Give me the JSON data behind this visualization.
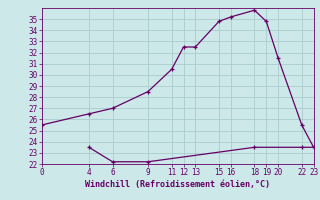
{
  "xlabel": "Windchill (Refroidissement éolien,°C)",
  "background_color": "#cce8e8",
  "grid_color": "#aacccc",
  "line_color": "#660066",
  "line1_x": [
    0,
    4,
    6,
    9,
    11,
    12,
    13,
    15,
    16,
    18,
    19,
    20,
    22,
    23
  ],
  "line1_y": [
    25.5,
    26.5,
    27.0,
    28.5,
    30.5,
    32.5,
    32.5,
    34.8,
    35.2,
    35.8,
    34.8,
    31.5,
    25.5,
    23.5
  ],
  "line2_x": [
    4,
    6,
    9,
    18,
    22,
    23
  ],
  "line2_y": [
    23.5,
    22.2,
    22.2,
    23.5,
    23.5,
    23.5
  ],
  "ylim": [
    22,
    36
  ],
  "xlim": [
    0,
    23
  ],
  "yticks": [
    22,
    23,
    24,
    25,
    26,
    27,
    28,
    29,
    30,
    31,
    32,
    33,
    34,
    35
  ],
  "xticks": [
    0,
    4,
    6,
    9,
    11,
    12,
    13,
    15,
    16,
    18,
    19,
    20,
    22,
    23
  ],
  "tick_fontsize": 5.5,
  "xlabel_fontsize": 6.0
}
